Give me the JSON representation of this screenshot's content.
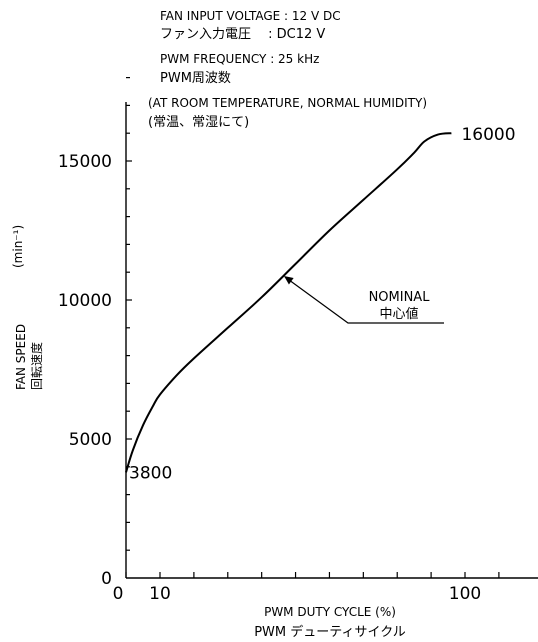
{
  "chart_data": {
    "type": "line",
    "conditions": [
      "FAN INPUT VOLTAGE : 12 V DC",
      "ファン入力電圧　 : DC12 V",
      "PWM FREQUENCY : 25 kHz",
      "PWM周波数",
      "(AT ROOM TEMPERATURE, NORMAL HUMIDITY)",
      "(常温、常湿にて)"
    ],
    "xlabel": "PWM DUTY CYCLE (%)",
    "xlabel_ja": "PWM デューティサイクル",
    "ylabel": "FAN SPEED",
    "ylabel_ja": "回転速度",
    "yunit": "(min⁻¹)",
    "xlim": [
      0,
      120
    ],
    "ylim": [
      0,
      18000
    ],
    "xticks": [
      0,
      10,
      20,
      30,
      40,
      50,
      60,
      70,
      80,
      90,
      100,
      110
    ],
    "xtick_labels": [
      {
        "x": 0,
        "text": "0"
      },
      {
        "x": 10,
        "text": "10"
      },
      {
        "x": 100,
        "text": "100"
      }
    ],
    "ytick_labels": [
      {
        "y": 0,
        "text": "0"
      },
      {
        "y": 5000,
        "text": "5000"
      },
      {
        "y": 10000,
        "text": "10000"
      },
      {
        "y": 15000,
        "text": "15000"
      }
    ],
    "series": [
      {
        "name": "NOMINAL",
        "x": [
          0,
          2,
          5,
          8,
          10,
          15,
          20,
          30,
          40,
          50,
          60,
          70,
          80,
          85,
          88,
          92,
          96
        ],
        "y": [
          3800,
          4600,
          5500,
          6200,
          6600,
          7300,
          7900,
          9000,
          10100,
          11300,
          12500,
          13600,
          14700,
          15300,
          15700,
          15950,
          16000
        ]
      }
    ],
    "annotations": [
      {
        "text": "3800",
        "x": 0,
        "y": 3800
      },
      {
        "text": "16000",
        "x": 96,
        "y": 16000
      }
    ],
    "callout": {
      "line1": "NOMINAL",
      "line2": "中心値",
      "target_x": 46,
      "target_y": 10900
    }
  }
}
